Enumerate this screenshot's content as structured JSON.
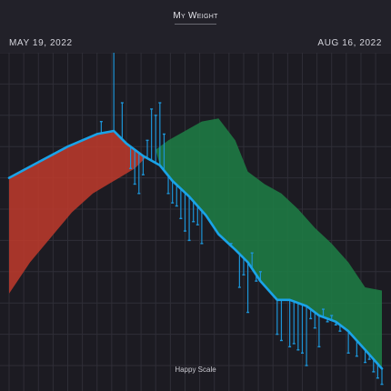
{
  "header": {
    "title": "My Weight",
    "start_date": "MAY 19, 2022",
    "end_date": "AUG 16, 2022"
  },
  "footer": {
    "brand": "Happy Scale"
  },
  "colors": {
    "background": "#1c1b22",
    "grid": "#2f2e37",
    "trend_line": "#1aa3e8",
    "weight_marks": "#1d94d6",
    "above_target_fill": "#c0392b",
    "below_target_fill": "#1e7a44"
  },
  "chart_data": {
    "type": "area",
    "x_axis": {
      "type": "date",
      "start": "2022-05-19",
      "end": "2022-08-16"
    },
    "y_axis": {
      "ylim": [
        0,
        100
      ],
      "tick_labels_shown": false
    },
    "grid": true,
    "series": [
      {
        "role": "trend",
        "x": [
          "2022-05-19",
          "2022-05-26",
          "2022-06-02",
          "2022-06-09",
          "2022-06-13",
          "2022-06-16",
          "2022-06-20",
          "2022-06-24",
          "2022-06-27",
          "2022-07-01",
          "2022-07-05",
          "2022-07-08",
          "2022-07-12",
          "2022-07-15",
          "2022-07-18",
          "2022-07-22",
          "2022-07-25",
          "2022-07-29",
          "2022-08-01",
          "2022-08-05",
          "2022-08-08",
          "2022-08-12",
          "2022-08-16"
        ],
        "y": [
          60,
          65,
          70,
          74,
          75,
          71,
          67,
          64,
          59,
          54,
          48,
          42,
          37,
          33,
          27,
          21,
          21,
          19,
          16,
          14,
          11,
          5,
          -1
        ]
      },
      {
        "role": "upper_band",
        "x": [
          "2022-05-19",
          "2022-05-26",
          "2022-06-02",
          "2022-06-09",
          "2022-06-13",
          "2022-06-16",
          "2022-06-20",
          "2022-06-23",
          "2022-06-26",
          "2022-06-30",
          "2022-07-04",
          "2022-07-08",
          "2022-07-12",
          "2022-07-15",
          "2022-07-19",
          "2022-07-23",
          "2022-07-27",
          "2022-07-31",
          "2022-08-04",
          "2022-08-08",
          "2022-08-12",
          "2022-08-16"
        ],
        "y": [
          60,
          65,
          70,
          74,
          75,
          71,
          67,
          69,
          72,
          75,
          78,
          79,
          72,
          62,
          58,
          55,
          50,
          44,
          39,
          33,
          25,
          24
        ]
      },
      {
        "role": "lower_band",
        "x": [
          "2022-05-19",
          "2022-05-24",
          "2022-05-29",
          "2022-06-03",
          "2022-06-08",
          "2022-06-13",
          "2022-06-18",
          "2022-06-21"
        ],
        "y": [
          23,
          33,
          41,
          49,
          55,
          59,
          63,
          67
        ]
      }
    ],
    "weigh_ins": [
      {
        "x": "2022-06-10",
        "y": 78
      },
      {
        "x": "2022-06-13",
        "y": 106
      },
      {
        "x": "2022-06-15",
        "y": 84
      },
      {
        "x": "2022-06-17",
        "y": 63
      },
      {
        "x": "2022-06-18",
        "y": 58
      },
      {
        "x": "2022-06-19",
        "y": 55
      },
      {
        "x": "2022-06-20",
        "y": 61
      },
      {
        "x": "2022-06-21",
        "y": 72
      },
      {
        "x": "2022-06-22",
        "y": 82
      },
      {
        "x": "2022-06-23",
        "y": 80
      },
      {
        "x": "2022-06-24",
        "y": 84
      },
      {
        "x": "2022-06-25",
        "y": 74
      },
      {
        "x": "2022-06-26",
        "y": 55
      },
      {
        "x": "2022-06-27",
        "y": 52
      },
      {
        "x": "2022-06-28",
        "y": 51
      },
      {
        "x": "2022-06-29",
        "y": 47
      },
      {
        "x": "2022-06-30",
        "y": 43
      },
      {
        "x": "2022-07-01",
        "y": 40
      },
      {
        "x": "2022-07-02",
        "y": 46
      },
      {
        "x": "2022-07-03",
        "y": 45
      },
      {
        "x": "2022-07-04",
        "y": 39
      },
      {
        "x": "2022-07-11",
        "y": 39
      },
      {
        "x": "2022-07-13",
        "y": 25
      },
      {
        "x": "2022-07-14",
        "y": 29
      },
      {
        "x": "2022-07-15",
        "y": 17
      },
      {
        "x": "2022-07-16",
        "y": 36
      },
      {
        "x": "2022-07-17",
        "y": 27
      },
      {
        "x": "2022-07-18",
        "y": 30
      },
      {
        "x": "2022-07-22",
        "y": 10
      },
      {
        "x": "2022-07-23",
        "y": 8
      },
      {
        "x": "2022-07-25",
        "y": 6
      },
      {
        "x": "2022-07-26",
        "y": 7
      },
      {
        "x": "2022-07-27",
        "y": 5
      },
      {
        "x": "2022-07-28",
        "y": 4
      },
      {
        "x": "2022-07-29",
        "y": 0
      },
      {
        "x": "2022-07-30",
        "y": 15
      },
      {
        "x": "2022-07-31",
        "y": 12
      },
      {
        "x": "2022-08-01",
        "y": 6
      },
      {
        "x": "2022-08-02",
        "y": 18
      },
      {
        "x": "2022-08-03",
        "y": 14
      },
      {
        "x": "2022-08-04",
        "y": 16
      },
      {
        "x": "2022-08-05",
        "y": 13
      },
      {
        "x": "2022-08-06",
        "y": 11
      },
      {
        "x": "2022-08-07",
        "y": 12
      },
      {
        "x": "2022-08-08",
        "y": 4
      },
      {
        "x": "2022-08-10",
        "y": 3
      },
      {
        "x": "2022-08-12",
        "y": 1
      },
      {
        "x": "2022-08-13",
        "y": 2
      },
      {
        "x": "2022-08-14",
        "y": -2
      },
      {
        "x": "2022-08-15",
        "y": -4
      },
      {
        "x": "2022-08-16",
        "y": -6
      }
    ]
  }
}
